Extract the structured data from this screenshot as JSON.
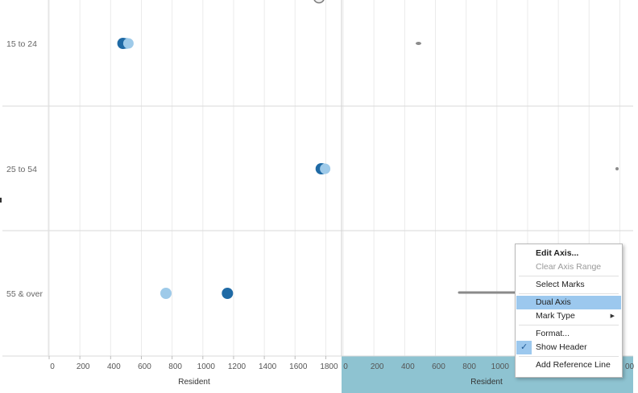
{
  "rows": [
    {
      "label": "15 to 24"
    },
    {
      "label": "25 to 54"
    },
    {
      "label": "55 & over"
    }
  ],
  "left_axis": {
    "title": "Resident",
    "ticks": [
      "0",
      "200",
      "400",
      "600",
      "800",
      "1000",
      "1200",
      "1400",
      "1600",
      "1800"
    ]
  },
  "right_axis": {
    "title": "Resident",
    "ticks": [
      "0",
      "200",
      "400",
      "600",
      "800",
      "1000"
    ],
    "partial_tick": "00",
    "highlight_color": "#8ec3d1"
  },
  "colors": {
    "dark_blue": "#1f6aa5",
    "light_blue": "#9ecae9",
    "gray_mark": "#8c8c8c",
    "grid": "#ebebeb",
    "divider": "#d9d9d9"
  },
  "chart_data": {
    "type": "scatter",
    "xlabel": "Resident",
    "ylabel": "",
    "categories": [
      "15 to 24",
      "25 to 54",
      "55 & over"
    ],
    "xlim_left": [
      0,
      1900
    ],
    "series": [
      {
        "values": [
          480,
          1770,
          1160
        ],
        "color": "#1f6aa5"
      },
      {
        "values": [
          500,
          1780,
          760
        ],
        "color": "#9ecae9"
      }
    ],
    "right_pane_marks": [
      {
        "category": "15 to 24",
        "x": 480
      },
      {
        "category": "25 to 54",
        "x": 1780
      }
    ]
  },
  "context_menu": {
    "items": [
      {
        "label": "Edit Axis...",
        "style": "bold"
      },
      {
        "label": "Clear Axis Range",
        "style": "disabled"
      },
      {
        "sep": true
      },
      {
        "label": "Select Marks"
      },
      {
        "sep": true
      },
      {
        "label": "Dual Axis",
        "style": "highlight"
      },
      {
        "label": "Mark Type",
        "submenu": true
      },
      {
        "sep": true
      },
      {
        "label": "Format..."
      },
      {
        "label": "Show Header",
        "checked": true
      },
      {
        "sep": true
      },
      {
        "label": "Add Reference Line"
      }
    ],
    "submenu_arrow": "▶",
    "check_glyph": "✓"
  }
}
